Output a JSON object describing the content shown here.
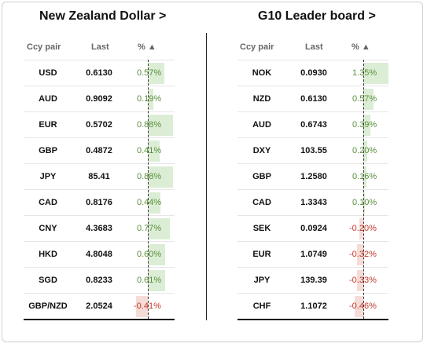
{
  "left_panel": {
    "title": "New Zealand Dollar >",
    "headers": {
      "pair": "Ccy pair",
      "last": "Last",
      "pct": "% ▲"
    },
    "rows": [
      {
        "pair": "USD",
        "last": "0.6130",
        "pct": "0.57%",
        "value": 0.57
      },
      {
        "pair": "AUD",
        "last": "0.9092",
        "pct": "0.19%",
        "value": 0.19
      },
      {
        "pair": "EUR",
        "last": "0.5702",
        "pct": "0.88%",
        "value": 0.88
      },
      {
        "pair": "GBP",
        "last": "0.4872",
        "pct": "0.41%",
        "value": 0.41
      },
      {
        "pair": "JPY",
        "last": "85.41",
        "pct": "0.88%",
        "value": 0.88
      },
      {
        "pair": "CAD",
        "last": "0.8176",
        "pct": "0.44%",
        "value": 0.44
      },
      {
        "pair": "CNY",
        "last": "4.3683",
        "pct": "0.77%",
        "value": 0.77
      },
      {
        "pair": "HKD",
        "last": "4.8048",
        "pct": "0.60%",
        "value": 0.6
      },
      {
        "pair": "SGD",
        "last": "0.8233",
        "pct": "0.61%",
        "value": 0.61
      },
      {
        "pair": "GBP/NZD",
        "last": "2.0524",
        "pct": "-0.41%",
        "value": -0.41
      }
    ]
  },
  "right_panel": {
    "title": "G10 Leader board >",
    "headers": {
      "pair": "Ccy pair",
      "last": "Last",
      "pct": "% ▲"
    },
    "rows": [
      {
        "pair": "NOK",
        "last": "0.0930",
        "pct": "1.35%",
        "value": 1.35
      },
      {
        "pair": "NZD",
        "last": "0.6130",
        "pct": "0.57%",
        "value": 0.57
      },
      {
        "pair": "AUD",
        "last": "0.6743",
        "pct": "0.39%",
        "value": 0.39
      },
      {
        "pair": "DXY",
        "last": "103.55",
        "pct": "0.20%",
        "value": 0.2
      },
      {
        "pair": "GBP",
        "last": "1.2580",
        "pct": "0.16%",
        "value": 0.16
      },
      {
        "pair": "CAD",
        "last": "1.3343",
        "pct": "0.10%",
        "value": 0.1
      },
      {
        "pair": "SEK",
        "last": "0.0924",
        "pct": "-0.20%",
        "value": -0.2
      },
      {
        "pair": "EUR",
        "last": "1.0749",
        "pct": "-0.32%",
        "value": -0.32
      },
      {
        "pair": "JPY",
        "last": "139.39",
        "pct": "-0.33%",
        "value": -0.33
      },
      {
        "pair": "CHF",
        "last": "1.1072",
        "pct": "-0.46%",
        "value": -0.46
      }
    ]
  },
  "colors": {
    "positive_bar": "#dcedd5",
    "negative_bar": "#f6dcd8",
    "positive_text": "#5a8f3c",
    "negative_text": "#c0392b"
  }
}
